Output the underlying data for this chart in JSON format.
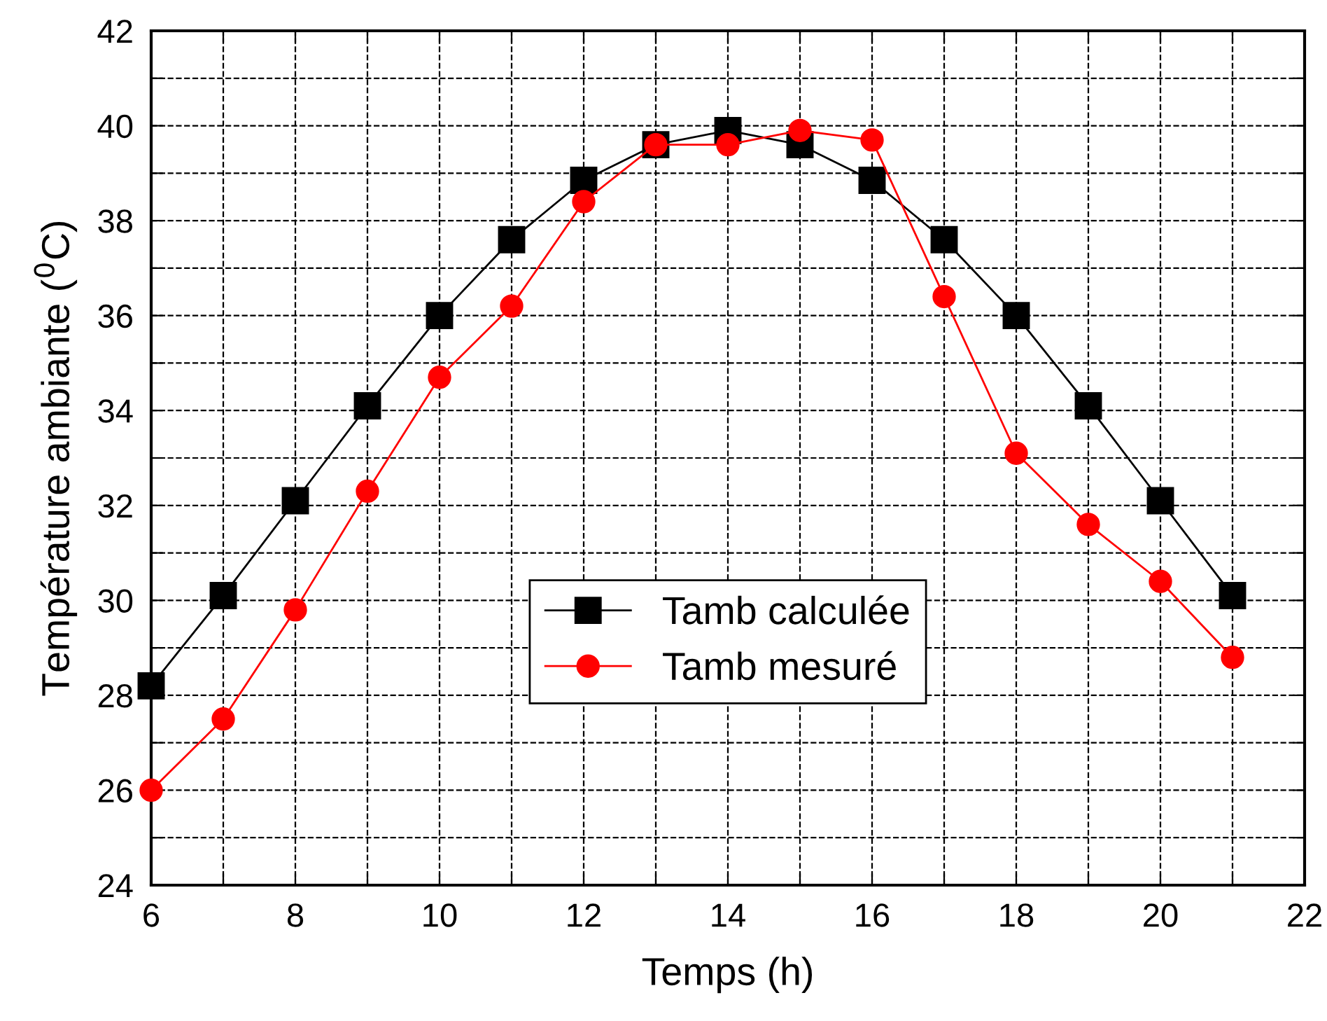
{
  "chart_data": {
    "type": "line",
    "xlabel": "Temps (h)",
    "ylabel": "Température ambiante ($^{0}$C)",
    "x": [
      6,
      7,
      8,
      9,
      10,
      11,
      12,
      13,
      14,
      15,
      16,
      17,
      18,
      19,
      20,
      21
    ],
    "series": [
      {
        "name": "Tamb calculée",
        "color": "#000000",
        "marker": "square",
        "values": [
          28.2,
          30.1,
          32.1,
          34.1,
          36.0,
          37.6,
          38.85,
          39.6,
          39.9,
          39.6,
          38.85,
          37.6,
          36.0,
          34.1,
          32.1,
          30.1
        ]
      },
      {
        "name": "Tamb mesuré",
        "color": "#ff0000",
        "marker": "circle",
        "values": [
          26.0,
          27.5,
          29.8,
          32.3,
          34.7,
          36.2,
          38.4,
          39.6,
          39.6,
          39.9,
          39.7,
          36.4,
          33.1,
          31.6,
          30.4,
          28.8
        ]
      }
    ],
    "xlim": [
      6,
      22
    ],
    "ylim": [
      24,
      42
    ],
    "xticks": [
      6,
      {
        "value": 7,
        "label": null
      },
      8,
      {
        "value": 9,
        "label": null
      },
      10,
      {
        "value": 11,
        "label": null
      },
      12,
      {
        "value": 13,
        "label": null
      },
      14,
      {
        "value": 15,
        "label": null
      },
      16,
      {
        "value": 17,
        "label": null
      },
      18,
      {
        "value": 19,
        "label": null
      },
      20,
      {
        "value": 21,
        "label": null
      },
      22
    ],
    "yticks": [
      24,
      {
        "value": 25,
        "label": null
      },
      26,
      {
        "value": 27,
        "label": null
      },
      28,
      {
        "value": 29,
        "label": null
      },
      30,
      {
        "value": 31,
        "label": null
      },
      32,
      {
        "value": 33,
        "label": null
      },
      34,
      {
        "value": 35,
        "label": null
      },
      36,
      {
        "value": 37,
        "label": null
      },
      38,
      {
        "value": 39,
        "label": null
      },
      40,
      {
        "value": 41,
        "label": null
      },
      42
    ],
    "grid": true,
    "legend": "bottom",
    "line_style": "solid"
  }
}
